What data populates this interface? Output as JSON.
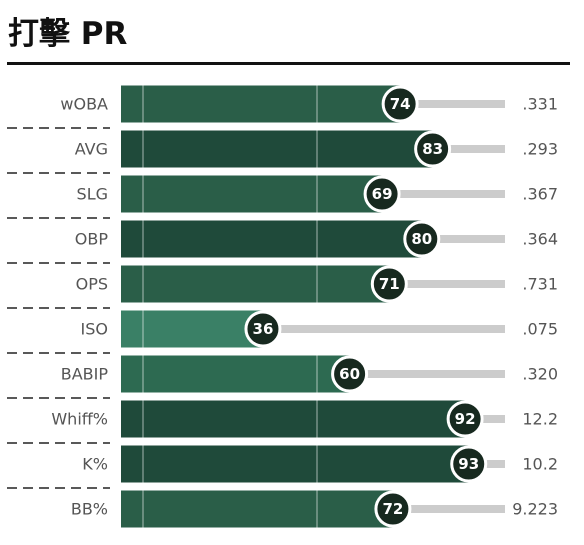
{
  "chart_data": {
    "type": "bar",
    "orientation": "horizontal",
    "title": "打擊 PR",
    "categories": [
      "wOBA",
      "AVG",
      "SLG",
      "OBP",
      "OPS",
      "ISO",
      "BABIP",
      "Whiff%",
      "K%",
      "BB%"
    ],
    "values": [
      74,
      83,
      69,
      80,
      71,
      36,
      60,
      92,
      93,
      72
    ],
    "colors": [
      "#2a5e48",
      "#1f4a3a",
      "#2a5e48",
      "#1f4a3a",
      "#2a5e48",
      "#3a8066",
      "#2d6a51",
      "#1f4a3a",
      "#1f4a3a",
      "#2a5e48"
    ],
    "stats": [
      ".331",
      ".293",
      ".367",
      ".364",
      ".731",
      ".075",
      ".320",
      "12.2",
      "10.2",
      "9.223"
    ],
    "xlim": [
      0,
      100
    ]
  }
}
